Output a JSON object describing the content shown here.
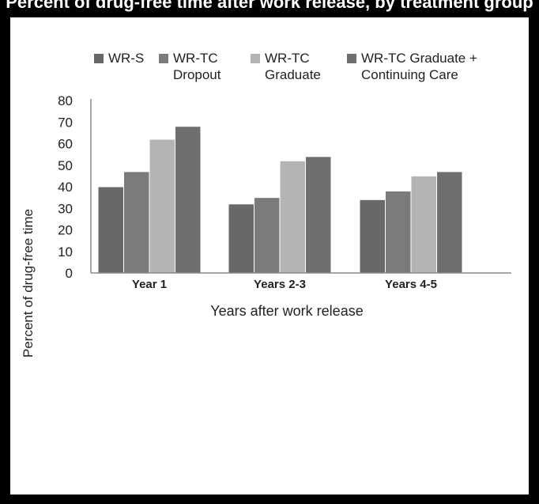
{
  "title_partial": "Percent of drug-free time after work release, by treatment group",
  "chart_data": {
    "type": "bar",
    "title": "",
    "xlabel": "Years after work release",
    "ylabel": "Percent of drug-free time",
    "ylim": [
      0,
      80
    ],
    "yticks": [
      "0",
      "10",
      "20",
      "30",
      "40",
      "50",
      "60",
      "70",
      "80"
    ],
    "grid": false,
    "legend_position": "top",
    "categories": [
      "Year 1",
      "Years 2-3",
      "Years 4-5"
    ],
    "series": [
      {
        "name": "WR-S",
        "legend_lines": [
          "WR-S"
        ],
        "color": "#686868",
        "values": [
          40,
          32,
          34
        ]
      },
      {
        "name": "WR-TC Dropout",
        "legend_lines": [
          "WR-TC",
          "Dropout"
        ],
        "color": "#7b7b7b",
        "values": [
          47,
          35,
          38
        ]
      },
      {
        "name": "WR-TC Graduate",
        "legend_lines": [
          "WR-TC",
          "Graduate"
        ],
        "color": "#b4b4b4",
        "values": [
          62,
          52,
          45
        ]
      },
      {
        "name": "WR-TC Graduate + Continuing Care",
        "legend_lines": [
          "WR-TC Graduate  +",
          "Continuing Care"
        ],
        "color": "#6f6f6f",
        "values": [
          68,
          54,
          47
        ]
      }
    ]
  }
}
